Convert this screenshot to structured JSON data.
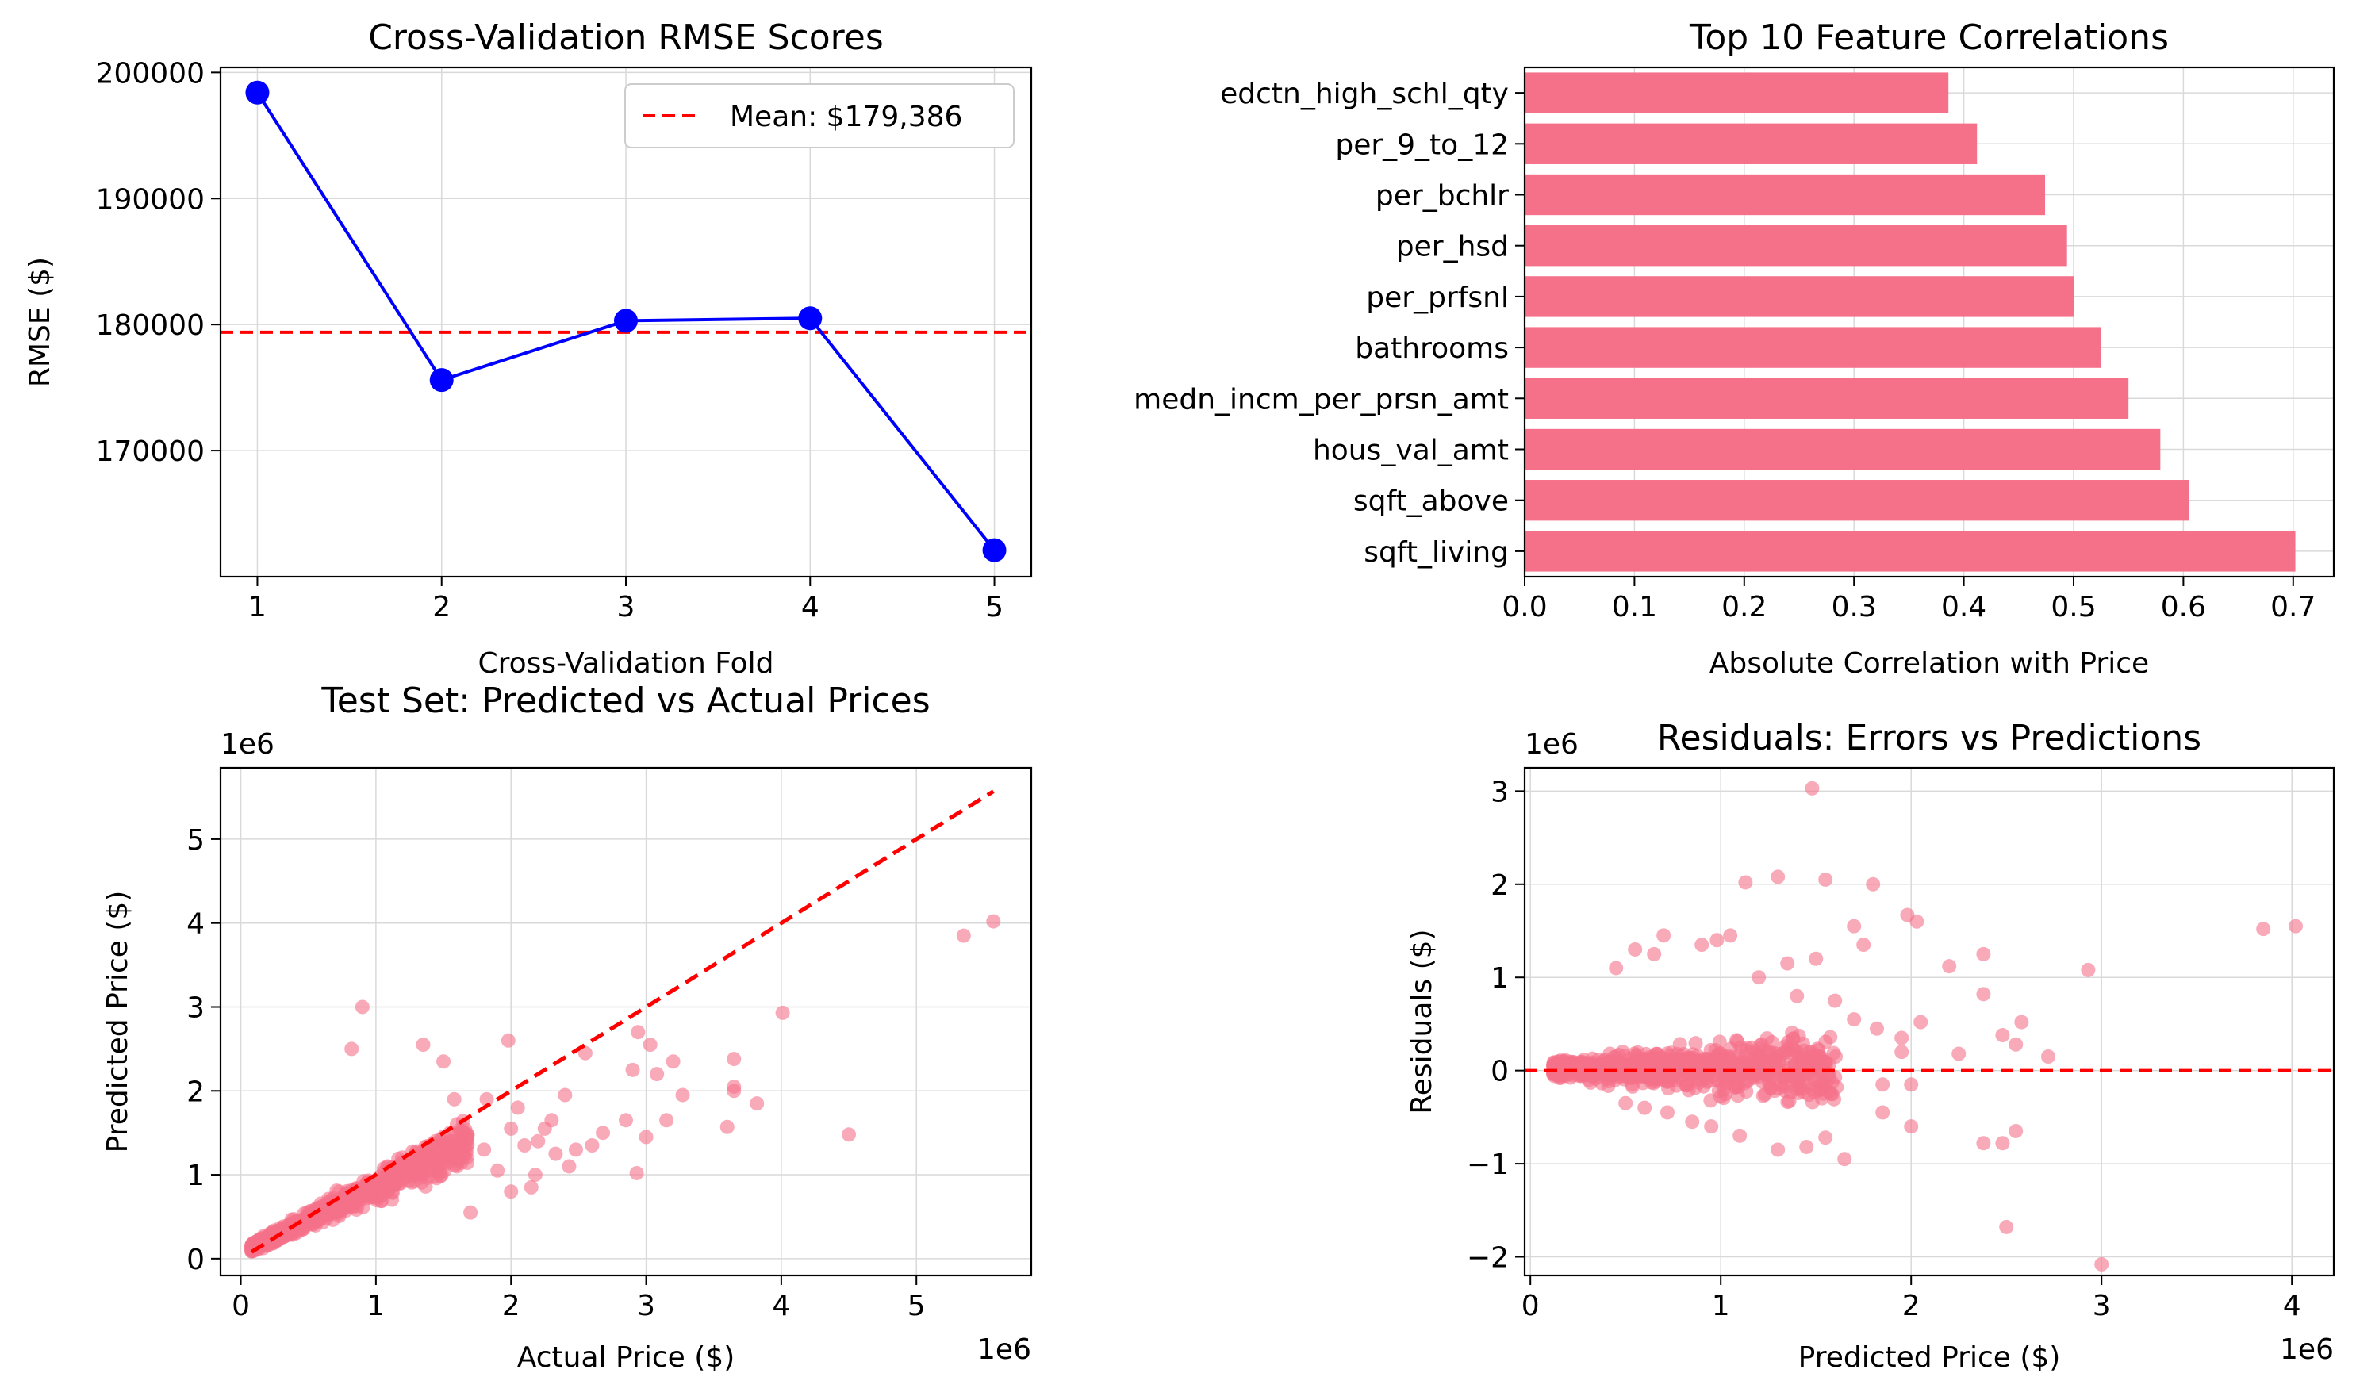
{
  "colors": {
    "accent": "#f5718a",
    "line": "#0000ff",
    "reference": "#ff0000",
    "grid": "#d9d9d9"
  },
  "chart_data": [
    {
      "type": "line",
      "title": "Cross-Validation RMSE Scores",
      "xlabel": "Cross-Validation Fold",
      "ylabel": "RMSE ($)",
      "x": [
        1,
        2,
        3,
        4,
        5
      ],
      "y": [
        198400,
        175600,
        180300,
        180500,
        162100
      ],
      "xlim": [
        0.8,
        5.2
      ],
      "ylim": [
        160000,
        200400
      ],
      "xticks": [
        "1",
        "2",
        "3",
        "4",
        "5"
      ],
      "yticks": [
        "170000",
        "180000",
        "190000",
        "200000"
      ],
      "ytick_values": [
        170000,
        180000,
        190000,
        200000
      ],
      "mean_line": 179386,
      "legend": "Mean: $179,386",
      "legend_position": "upper right",
      "grid": true
    },
    {
      "type": "bar",
      "orientation": "horizontal",
      "title": "Top 10 Feature Correlations",
      "xlabel": "Absolute Correlation with Price",
      "categories": [
        "sqft_living",
        "sqft_above",
        "hous_val_amt",
        "medn_incm_per_prsn_amt",
        "bathrooms",
        "per_prfsnl",
        "per_hsd",
        "per_bchlr",
        "per_9_to_12",
        "edctn_high_schl_qty"
      ],
      "values": [
        0.702,
        0.605,
        0.579,
        0.55,
        0.525,
        0.5,
        0.494,
        0.474,
        0.412,
        0.386
      ],
      "xlim": [
        0,
        0.737
      ],
      "xticks": [
        "0.0",
        "0.1",
        "0.2",
        "0.3",
        "0.4",
        "0.5",
        "0.6",
        "0.7"
      ],
      "grid": true
    },
    {
      "type": "scatter",
      "title": "Test Set: Predicted vs Actual Prices",
      "xlabel": "Actual Price ($)",
      "ylabel": "Predicted Price ($)",
      "x_offset_label": "1e6",
      "y_offset_label": "1e6",
      "xlim": [
        -0.15,
        5.85
      ],
      "ylim": [
        -0.2,
        5.85
      ],
      "xticks": [
        "0",
        "1",
        "2",
        "3",
        "4",
        "5"
      ],
      "yticks": [
        "0",
        "1",
        "2",
        "3",
        "4",
        "5"
      ],
      "reference_line": [
        [
          0.08,
          0.08
        ],
        [
          5.57,
          5.57
        ]
      ],
      "grid": true,
      "points": [
        [
          5.57,
          4.02
        ],
        [
          5.35,
          3.85
        ],
        [
          4.5,
          1.48
        ],
        [
          4.01,
          2.93
        ],
        [
          3.82,
          1.85
        ],
        [
          3.65,
          2.38
        ],
        [
          3.65,
          2.05
        ],
        [
          3.65,
          2.0
        ],
        [
          3.6,
          1.57
        ],
        [
          3.27,
          1.95
        ],
        [
          3.2,
          2.35
        ],
        [
          3.15,
          1.65
        ],
        [
          3.08,
          2.2
        ],
        [
          3.03,
          2.55
        ],
        [
          3.0,
          1.45
        ],
        [
          2.94,
          2.7
        ],
        [
          2.93,
          1.02
        ],
        [
          2.9,
          2.25
        ],
        [
          2.85,
          1.65
        ],
        [
          2.68,
          1.5
        ],
        [
          2.6,
          1.35
        ],
        [
          2.55,
          2.45
        ],
        [
          2.48,
          1.3
        ],
        [
          2.43,
          1.1
        ],
        [
          2.4,
          1.95
        ],
        [
          2.33,
          1.25
        ],
        [
          2.3,
          1.65
        ],
        [
          2.25,
          1.55
        ],
        [
          2.2,
          1.4
        ],
        [
          2.18,
          1.0
        ],
        [
          2.15,
          0.85
        ],
        [
          2.1,
          1.35
        ],
        [
          2.05,
          1.8
        ],
        [
          2.0,
          1.55
        ],
        [
          2.0,
          0.8
        ],
        [
          1.98,
          2.6
        ],
        [
          1.9,
          1.05
        ],
        [
          1.82,
          1.9
        ],
        [
          1.8,
          1.3
        ],
        [
          1.7,
          0.55
        ],
        [
          1.6,
          1.1
        ],
        [
          1.58,
          1.9
        ],
        [
          1.5,
          2.35
        ],
        [
          1.35,
          2.55
        ],
        [
          0.9,
          3.0
        ],
        [
          0.82,
          2.5
        ]
      ]
    },
    {
      "type": "scatter",
      "title": "Residuals: Errors vs Predictions",
      "xlabel": "Predicted Price ($)",
      "ylabel": "Residuals ($)",
      "x_offset_label": "1e6",
      "y_offset_label": "1e6",
      "xlim": [
        -0.03,
        4.22
      ],
      "ylim": [
        -2.2,
        3.25
      ],
      "xticks": [
        "0",
        "1",
        "2",
        "3",
        "4"
      ],
      "yticks": [
        "−2",
        "−1",
        "0",
        "1",
        "2",
        "3"
      ],
      "ytick_values": [
        -2,
        -1,
        0,
        1,
        2,
        3
      ],
      "zero_line": 0,
      "grid": true,
      "points": [
        [
          1.48,
          3.03
        ],
        [
          1.3,
          2.08
        ],
        [
          1.55,
          2.05
        ],
        [
          1.8,
          2.0
        ],
        [
          1.13,
          2.02
        ],
        [
          1.98,
          1.67
        ],
        [
          2.03,
          1.6
        ],
        [
          3.85,
          1.52
        ],
        [
          4.02,
          1.55
        ],
        [
          2.93,
          1.08
        ],
        [
          2.38,
          1.25
        ],
        [
          2.2,
          1.12
        ],
        [
          1.7,
          1.55
        ],
        [
          1.5,
          1.2
        ],
        [
          1.75,
          1.35
        ],
        [
          2.38,
          0.82
        ],
        [
          2.58,
          0.52
        ],
        [
          2.48,
          0.38
        ],
        [
          2.55,
          0.28
        ],
        [
          2.72,
          0.15
        ],
        [
          2.25,
          0.18
        ],
        [
          2.05,
          0.52
        ],
        [
          1.95,
          0.2
        ],
        [
          2.0,
          -0.15
        ],
        [
          1.85,
          -0.15
        ],
        [
          2.0,
          -0.6
        ],
        [
          1.85,
          -0.45
        ],
        [
          2.38,
          -0.78
        ],
        [
          2.48,
          -0.78
        ],
        [
          2.55,
          -0.65
        ],
        [
          2.5,
          -1.68
        ],
        [
          3.0,
          -2.08
        ],
        [
          1.65,
          -0.95
        ],
        [
          1.55,
          -0.72
        ],
        [
          1.45,
          -0.82
        ],
        [
          1.3,
          -0.85
        ],
        [
          1.1,
          -0.7
        ],
        [
          0.95,
          -0.6
        ],
        [
          0.85,
          -0.55
        ],
        [
          0.72,
          -0.45
        ],
        [
          0.6,
          -0.4
        ],
        [
          0.5,
          -0.35
        ],
        [
          0.45,
          1.1
        ],
        [
          0.55,
          1.3
        ],
        [
          0.65,
          1.25
        ],
        [
          0.7,
          1.45
        ],
        [
          0.9,
          1.35
        ],
        [
          0.98,
          1.4
        ],
        [
          1.05,
          1.45
        ],
        [
          1.2,
          1.0
        ],
        [
          1.35,
          1.15
        ],
        [
          1.4,
          0.8
        ],
        [
          1.6,
          0.75
        ],
        [
          1.7,
          0.55
        ],
        [
          1.82,
          0.45
        ],
        [
          1.95,
          0.35
        ]
      ]
    }
  ]
}
